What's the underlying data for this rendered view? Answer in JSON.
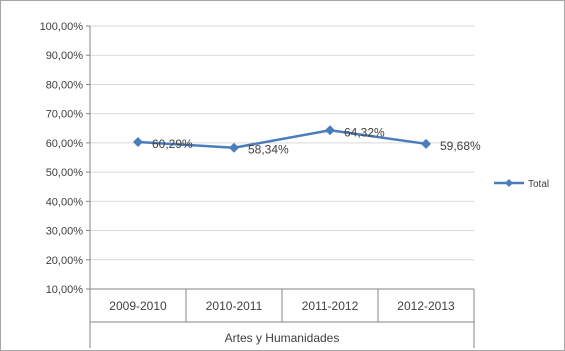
{
  "chart_data": {
    "type": "line",
    "categories": [
      "2009-2010",
      "2010-2011",
      "2011-2012",
      "2012-2013"
    ],
    "group_label": "Artes y Humanidades",
    "series": [
      {
        "name": "Total",
        "values": [
          60.29,
          58.34,
          64.32,
          59.68
        ],
        "labels": [
          "60,29%",
          "58,34%",
          "64,32%",
          "59,68%"
        ],
        "color": "#4a7ebb"
      }
    ],
    "ylim": [
      10,
      100
    ],
    "yticks": [
      "100,00%",
      "90,00%",
      "80,00%",
      "70,00%",
      "60,00%",
      "50,00%",
      "40,00%",
      "30,00%",
      "20,00%",
      "10,00%"
    ],
    "grid": true,
    "legend_position": "right"
  }
}
